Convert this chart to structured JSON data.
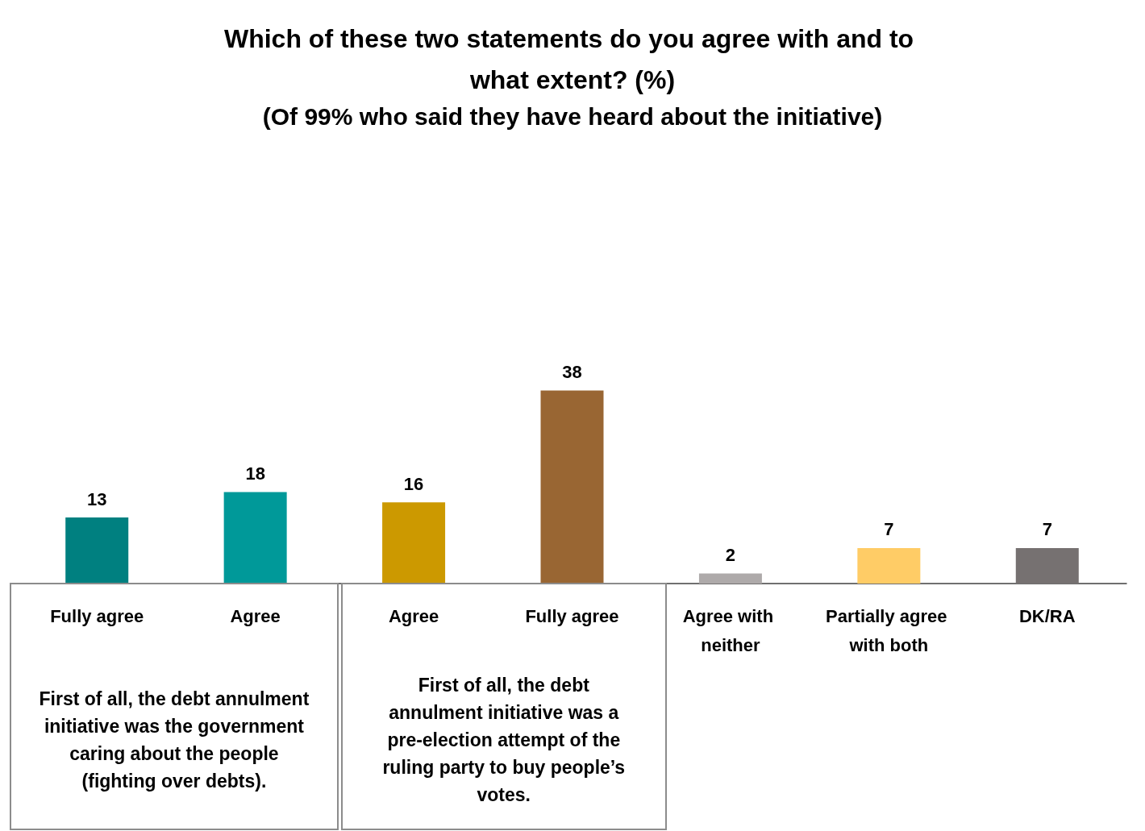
{
  "chart_data": {
    "type": "bar",
    "title": "Which of these two statements do you agree with and to what extent? (%)",
    "subtitle": "(Of 99% who said they have heard about the initiative)",
    "categories": [
      "Fully agree",
      "Agree",
      "Agree",
      "Fully agree",
      "Agree with neither",
      "Partially agree with both",
      "DK/RA"
    ],
    "values": [
      13,
      18,
      16,
      38,
      2,
      7,
      7
    ],
    "colors": [
      "#008080",
      "#009999",
      "#cc9900",
      "#996633",
      "#aeaaaa",
      "#ffcc66",
      "#767171"
    ],
    "data_labels": true,
    "annotations": [
      "First of all, the debt annulment initiative was the government caring about the people (fighting over debts).",
      "First of all, the debt annulment initiative was a pre-election attempt of the ruling party to buy people’s votes."
    ]
  }
}
